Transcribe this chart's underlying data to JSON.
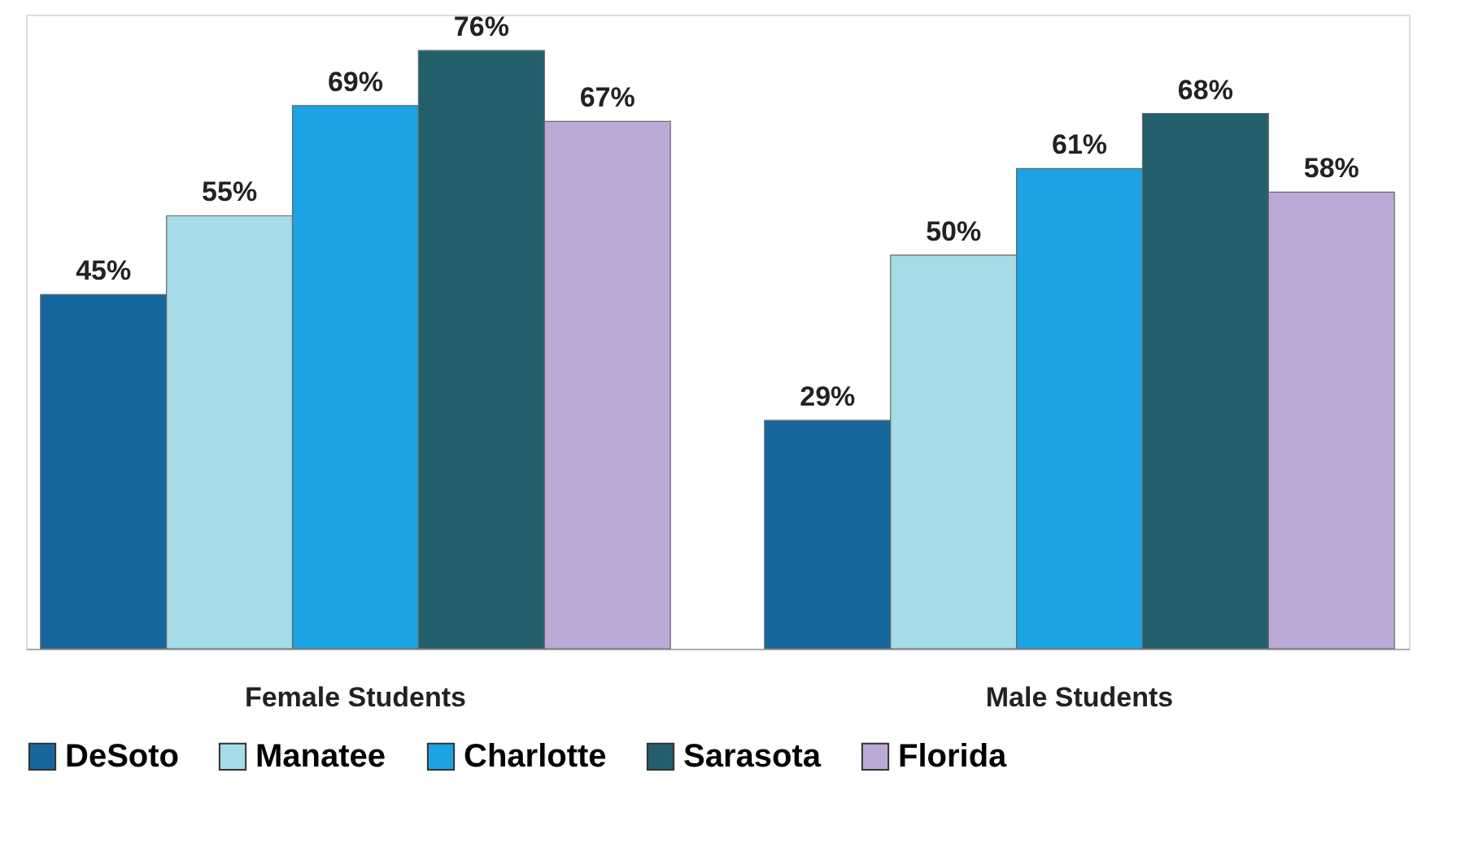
{
  "chart_data": {
    "type": "bar",
    "categories": [
      "Female Students",
      "Male Students"
    ],
    "series": [
      {
        "name": "DeSoto",
        "color": "#17679e",
        "values": [
          45,
          29
        ],
        "value_labels": [
          "45%",
          "29%"
        ]
      },
      {
        "name": "Manatee",
        "color": "#a6dbe8",
        "values": [
          55,
          50
        ],
        "value_labels": [
          "55%",
          "50%"
        ]
      },
      {
        "name": "Charlotte",
        "color": "#1ca3e3",
        "values": [
          69,
          61
        ],
        "value_labels": [
          "69%",
          "61%"
        ]
      },
      {
        "name": "Sarasota",
        "color": "#245f6c",
        "values": [
          76,
          68
        ],
        "value_labels": [
          "76%",
          "68%"
        ]
      },
      {
        "name": "Florida",
        "color": "#bda9d5",
        "values": [
          67,
          58
        ],
        "value_labels": [
          "67%",
          "58%"
        ]
      }
    ],
    "legend": "bottom",
    "grid": false
  }
}
